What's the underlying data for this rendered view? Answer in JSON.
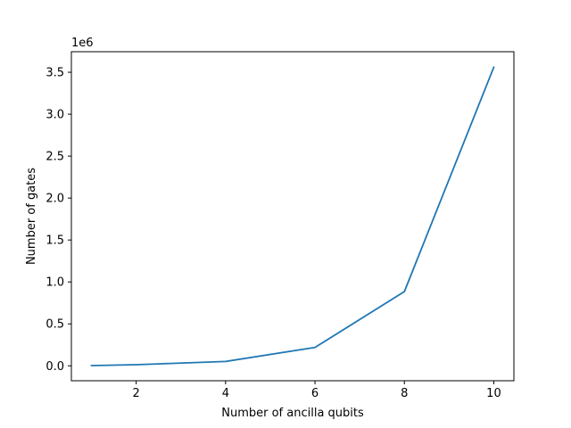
{
  "chart_data": {
    "type": "line",
    "title": "",
    "xlabel": "Number of ancilla qubits",
    "ylabel": "Number of gates",
    "y_offset_label": "1e6",
    "xlim": [
      0.55,
      10.45
    ],
    "ylim": [
      -0.178,
      3.745
    ],
    "xticks": [
      2,
      4,
      6,
      8,
      10
    ],
    "xtick_labels": [
      "2",
      "4",
      "6",
      "8",
      "10"
    ],
    "yticks": [
      0.0,
      0.5,
      1.0,
      1.5,
      2.0,
      2.5,
      3.0,
      3.5
    ],
    "ytick_labels": [
      "0.0",
      "0.5",
      "1.0",
      "1.5",
      "2.0",
      "2.5",
      "3.0",
      "3.5"
    ],
    "y_unit_multiplier": 1000000,
    "grid": false,
    "series": [
      {
        "color": "#1f77b4",
        "x": [
          1,
          2,
          4,
          6,
          8,
          10
        ],
        "y": [
          0.003,
          0.013,
          0.052,
          0.219,
          0.885,
          3.56
        ]
      }
    ]
  }
}
